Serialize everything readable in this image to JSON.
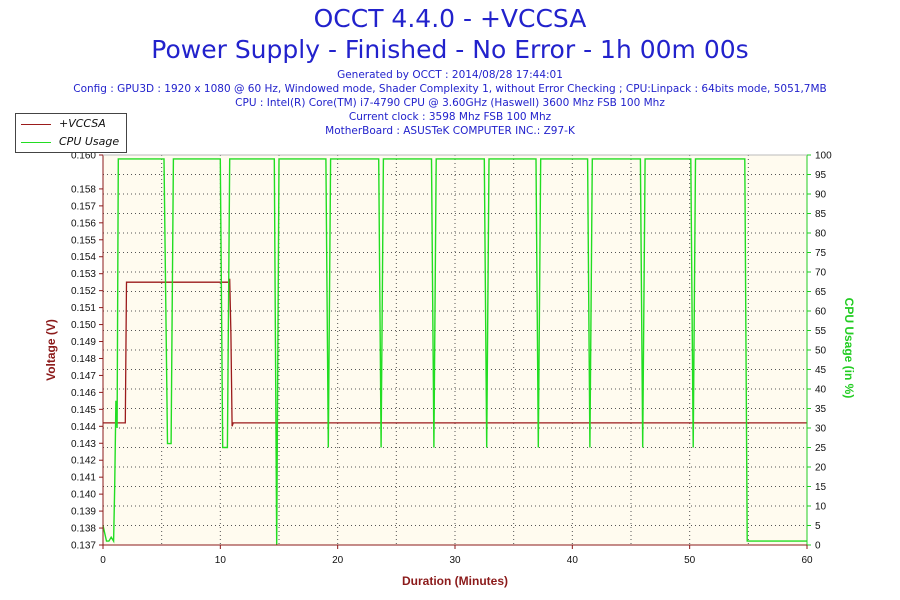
{
  "header": {
    "title": "OCCT 4.4.0 - +VCCSA",
    "subtitle": "Power Supply - Finished - No Error - 1h 00m 00s",
    "info": [
      "Generated by OCCT : 2014/08/28 17:44:01",
      "Config : GPU3D : 1920 x 1080 @ 60 Hz, Windowed mode, Shader Complexity 1, without Error Checking ; CPU:Linpack : 64bits mode, 5051,7MB",
      "CPU : Intel(R) Core(TM) i7-4790 CPU @ 3.60GHz (Haswell) 3600 Mhz FSB 100 Mhz",
      "Current clock : 3598 Mhz FSB 100 Mhz",
      "MotherBoard : ASUSTeK COMPUTER INC.: Z97-K"
    ]
  },
  "chart_data": {
    "type": "line",
    "xlabel": "Duration (Minutes)",
    "ylabel": "Voltage (V)",
    "y2label": "CPU Usage (in %)",
    "xlim": [
      0,
      60
    ],
    "ylim": [
      0.137,
      0.16
    ],
    "y2lim": [
      0,
      100
    ],
    "x_ticks": [
      "0",
      "10",
      "20",
      "30",
      "40",
      "50",
      "60"
    ],
    "y_ticks": [
      "0.137",
      "0.138",
      "0.139",
      "0.140",
      "0.141",
      "0.142",
      "0.143",
      "0.144",
      "0.145",
      "0.146",
      "0.147",
      "0.148",
      "0.149",
      "0.150",
      "0.151",
      "0.152",
      "0.153",
      "0.154",
      "0.155",
      "0.156",
      "0.157",
      "0.158",
      "0.160"
    ],
    "y2_ticks": [
      "0",
      "5",
      "10",
      "15",
      "20",
      "25",
      "30",
      "35",
      "40",
      "45",
      "50",
      "55",
      "60",
      "65",
      "70",
      "75",
      "80",
      "85",
      "90",
      "95",
      "100"
    ],
    "grid": true,
    "legend_position": "top-left",
    "colors": {
      "voltage": "#9b1b1b",
      "cpu": "#22dd22",
      "axis_left": "#8b1a1a",
      "axis_right": "#22cc22",
      "axis_x": "#8b1a1a",
      "plot_bg": "#fffbef"
    },
    "series": [
      {
        "name": "+VCCSA",
        "color": "#9b1b1b",
        "x": [
          0,
          0.9,
          1.0,
          1.9,
          2.0,
          10.7,
          10.8,
          10.9,
          11.0,
          11.1,
          60
        ],
        "y": [
          0.1442,
          0.1442,
          0.1442,
          0.1442,
          0.1525,
          0.1525,
          0.1527,
          0.1495,
          0.144,
          0.1442,
          0.1442
        ]
      },
      {
        "name": "CPU Usage",
        "color": "#22dd22",
        "x": [
          0,
          0.3,
          0.5,
          0.7,
          0.9,
          1.0,
          1.1,
          1.2,
          1.3,
          5.2,
          5.5,
          5.8,
          6.0,
          10.0,
          10.2,
          10.6,
          10.8,
          14.6,
          14.8,
          15.0,
          19.0,
          19.2,
          19.4,
          23.5,
          23.7,
          23.9,
          28.0,
          28.2,
          28.4,
          32.5,
          32.7,
          32.9,
          36.9,
          37.1,
          37.3,
          41.3,
          41.5,
          41.7,
          45.8,
          46.0,
          46.2,
          50.1,
          50.3,
          50.5,
          54.7,
          54.9,
          55.1,
          60
        ],
        "y": [
          5,
          1,
          1,
          2,
          1,
          15,
          37,
          30,
          99,
          99,
          26,
          26,
          99,
          99,
          25,
          25,
          99,
          99,
          0,
          99,
          99,
          25,
          99,
          99,
          25,
          99,
          99,
          25,
          99,
          99,
          25,
          99,
          99,
          25,
          99,
          99,
          25,
          99,
          99,
          25,
          99,
          99,
          25,
          99,
          99,
          1,
          1,
          1
        ]
      }
    ]
  }
}
